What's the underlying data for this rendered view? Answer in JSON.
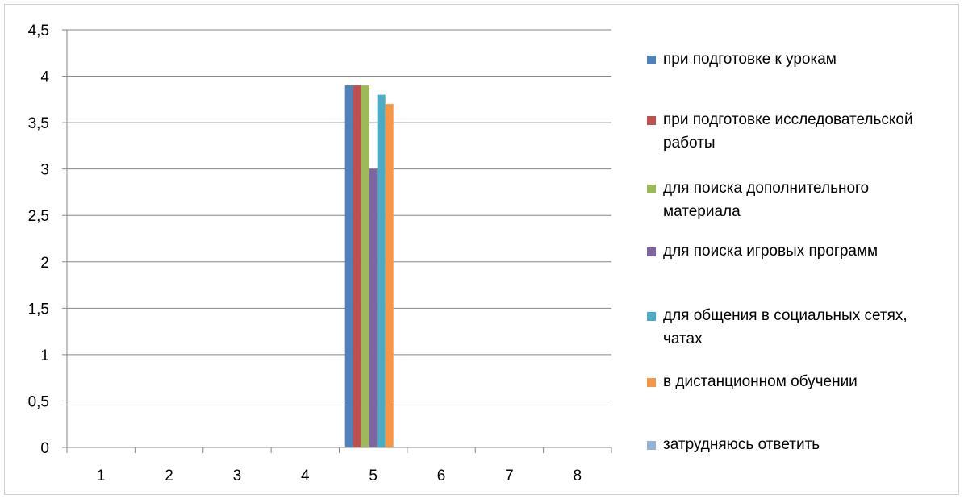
{
  "chart_data": {
    "type": "bar",
    "categories": [
      "1",
      "2",
      "3",
      "4",
      "5",
      "6",
      "7",
      "8"
    ],
    "series": [
      {
        "name": "при подготовке к урокам",
        "color": "#4F81BD",
        "values": [
          0,
          0,
          0,
          0,
          3.9,
          0,
          0,
          0
        ]
      },
      {
        "name": "при подготовке исследовательской работы",
        "color": "#C0504D",
        "values": [
          0,
          0,
          0,
          0,
          3.9,
          0,
          0,
          0
        ]
      },
      {
        "name": "для поиска дополнительного материала",
        "color": "#9BBB59",
        "values": [
          0,
          0,
          0,
          0,
          3.9,
          0,
          0,
          0
        ]
      },
      {
        "name": "для поиска игровых программ",
        "color": "#8064A2",
        "values": [
          0,
          0,
          0,
          0,
          3.0,
          0,
          0,
          0
        ]
      },
      {
        "name": "для общения в социальных сетях, чатах",
        "color": "#4BACC6",
        "values": [
          0,
          0,
          0,
          0,
          3.8,
          0,
          0,
          0
        ]
      },
      {
        "name": "в дистанционном обучении",
        "color": "#F79646",
        "values": [
          0,
          0,
          0,
          0,
          3.7,
          0,
          0,
          0
        ]
      },
      {
        "name": "затрудняюсь ответить",
        "color": "#95B3D7",
        "values": [
          0,
          0,
          0,
          0,
          0,
          0,
          0,
          0
        ]
      }
    ],
    "ylim": [
      0,
      4.5
    ],
    "yticks": [
      "0",
      "0,5",
      "1",
      "1,5",
      "2",
      "2,5",
      "3",
      "3,5",
      "4",
      "4,5"
    ],
    "title": "",
    "xlabel": "",
    "ylabel": "",
    "grid": true,
    "legend_position": "right"
  }
}
